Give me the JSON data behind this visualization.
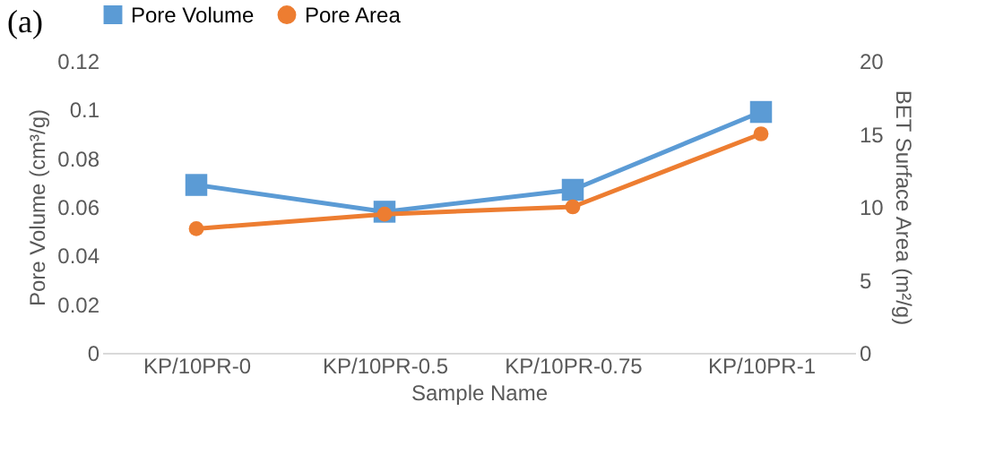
{
  "chart_data": {
    "type": "line",
    "xlabel": "Sample Name",
    "ylabel": "Pore Volume (cm³/g)",
    "y2label": "BET Surface Area (m²/g)",
    "categories": [
      "KP/10PR-0",
      "KP/10PR-0.5",
      "KP/10PR-0.75",
      "KP/10PR-1"
    ],
    "series": [
      {
        "name": "Pore Volume",
        "color": "#5b9bd5",
        "marker": "square",
        "values": [
          0.069,
          0.058,
          0.067,
          0.099
        ]
      },
      {
        "name": "Pore Area",
        "color": "#ed7d31",
        "marker": "circle",
        "axis": "y2",
        "values": [
          8.5,
          9.5,
          10,
          15
        ]
      }
    ],
    "ylim": [
      0,
      0.12
    ],
    "yticks": [
      0,
      0.02,
      0.04,
      0.06,
      0.08,
      0.1,
      0.12
    ],
    "y2lim": [
      0,
      20
    ],
    "y2ticks": [
      0,
      5,
      10,
      15,
      20
    ],
    "grid": false,
    "legend": "top",
    "annotations": [
      "(a)"
    ]
  }
}
